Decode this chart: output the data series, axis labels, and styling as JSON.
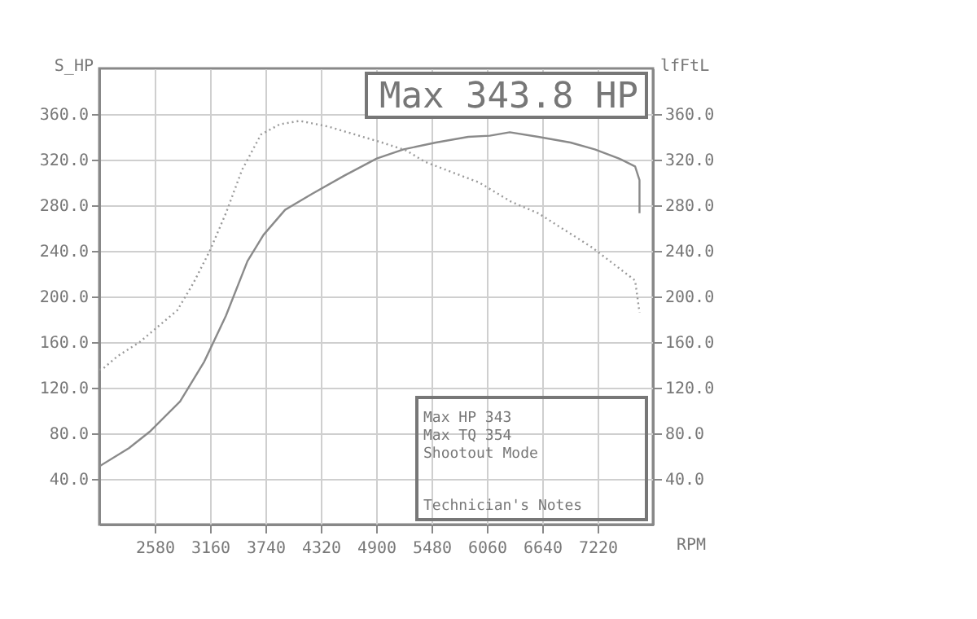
{
  "chart_data": {
    "type": "line",
    "xlabel": "RPM",
    "ylabel": "S_HP",
    "y2label": "lfFtL",
    "annotations": [
      "Max 343.8 HP",
      "Max HP 343",
      "Max TQ 354",
      "Shootout Mode",
      "Technician's Notes"
    ],
    "xlim": [
      2000,
      7800
    ],
    "xticks": [
      2580,
      3160,
      3740,
      4320,
      4900,
      5480,
      6060,
      6640,
      7220
    ],
    "ylim": [
      0,
      400
    ],
    "yticks": [
      {
        "value": 40,
        "label": "40.0"
      },
      {
        "value": 80,
        "label": "80.0"
      },
      {
        "value": 120,
        "label": "120.0"
      },
      {
        "value": 160,
        "label": "160.0"
      },
      {
        "value": 200,
        "label": "200.0"
      },
      {
        "value": 240,
        "label": "240.0"
      },
      {
        "value": 280,
        "label": "280.0"
      },
      {
        "value": 320,
        "label": "320.0"
      },
      {
        "value": 360,
        "label": "360.0"
      }
    ],
    "y2lim": [
      0,
      400
    ],
    "y2ticks": [
      {
        "value": 40,
        "label": "40.0"
      },
      {
        "value": 80,
        "label": "80.0"
      },
      {
        "value": 120,
        "label": "120.0"
      },
      {
        "value": 160,
        "label": "160.0"
      },
      {
        "value": 200,
        "label": "200.0"
      },
      {
        "value": 240,
        "label": "240.0"
      },
      {
        "value": 280,
        "label": "280.0"
      },
      {
        "value": 320,
        "label": "320.0"
      },
      {
        "value": 360,
        "label": "360.0"
      }
    ],
    "grid": true,
    "series": [
      {
        "color": "#8a8a8a",
        "line_style": "solid",
        "x": [
          2000,
          2310,
          2536,
          2846,
          3100,
          3326,
          3552,
          3720,
          3946,
          4229,
          4567,
          4906,
          5188,
          5526,
          5865,
          6090,
          6300,
          6598,
          6936,
          7190,
          7444,
          7613,
          7659,
          7659
        ],
        "values": [
          51,
          67,
          82,
          108,
          143,
          183,
          231,
          254,
          276,
          290,
          306,
          321,
          329,
          335,
          340,
          341,
          344,
          340,
          335,
          329,
          321,
          314,
          302,
          273
        ]
      },
      {
        "color": "#9a9a9a",
        "line_style": "dotted",
        "axis": "y2",
        "x": [
          2000,
          2028,
          2197,
          2423,
          2592,
          2818,
          2987,
          3157,
          3326,
          3495,
          3693,
          3890,
          4100,
          4398,
          4680,
          4962,
          5216,
          5413,
          5695,
          5978,
          6316,
          6598,
          7162,
          7613,
          7659
        ],
        "values": [
          136,
          136,
          148,
          160,
          172,
          188,
          212,
          240,
          273,
          311,
          342,
          351,
          354,
          349,
          342,
          335,
          328,
          318,
          309,
          300,
          283,
          273,
          243,
          214,
          186
        ]
      }
    ]
  }
}
